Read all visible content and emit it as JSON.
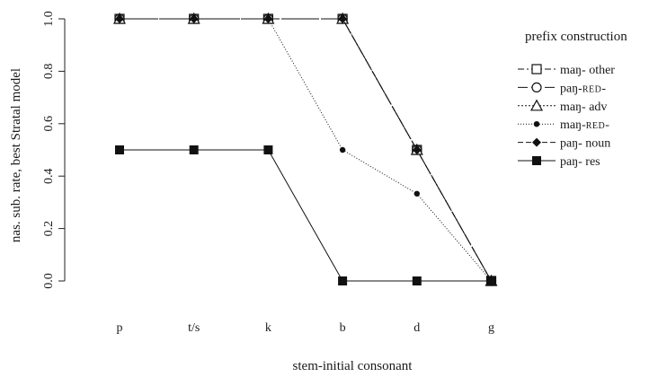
{
  "chart_data": {
    "type": "line",
    "title": "",
    "xlabel": "stem-initial consonant",
    "ylabel": "nas. sub. rate, best Stratal model",
    "categories": [
      "p",
      "t/s",
      "k",
      "b",
      "d",
      "g"
    ],
    "yticks": [
      "0.0",
      "0.2",
      "0.4",
      "0.6",
      "0.8",
      "1.0"
    ],
    "ylim": [
      0,
      1
    ],
    "grid": false,
    "legend": {
      "title": "prefix construction",
      "position": "right"
    },
    "series": [
      {
        "name": "maŋ- other",
        "name_parts": [
          "maŋ- other"
        ],
        "values": [
          1.0,
          1.0,
          1.0,
          1.0,
          0.5,
          0.0
        ],
        "marker": "open-square",
        "line": "dashdot"
      },
      {
        "name": "paŋ-RED-",
        "name_parts": [
          "paŋ-",
          "RED",
          "-"
        ],
        "values": [
          1.0,
          1.0,
          1.0,
          1.0,
          0.5,
          0.0
        ],
        "marker": "open-circle",
        "line": "longdash"
      },
      {
        "name": "maŋ- adv",
        "name_parts": [
          "maŋ- adv"
        ],
        "values": [
          1.0,
          1.0,
          1.0,
          1.0,
          0.5,
          0.0
        ],
        "marker": "open-triangle",
        "line": "dotted"
      },
      {
        "name": "maŋ-RED-",
        "name_parts": [
          "maŋ-",
          "RED",
          "-"
        ],
        "values": [
          1.0,
          1.0,
          1.0,
          0.5,
          0.333,
          0.0
        ],
        "marker": "filled-dot",
        "line": "fine-dotted"
      },
      {
        "name": "paŋ- noun",
        "name_parts": [
          "paŋ- noun"
        ],
        "values": [
          1.0,
          1.0,
          1.0,
          1.0,
          0.5,
          0.0
        ],
        "marker": "filled-diamond",
        "line": "dashed"
      },
      {
        "name": "paŋ- res",
        "name_parts": [
          "paŋ- res"
        ],
        "values": [
          0.5,
          0.5,
          0.5,
          0.0,
          0.0,
          0.0
        ],
        "marker": "filled-square",
        "line": "solid"
      }
    ]
  }
}
